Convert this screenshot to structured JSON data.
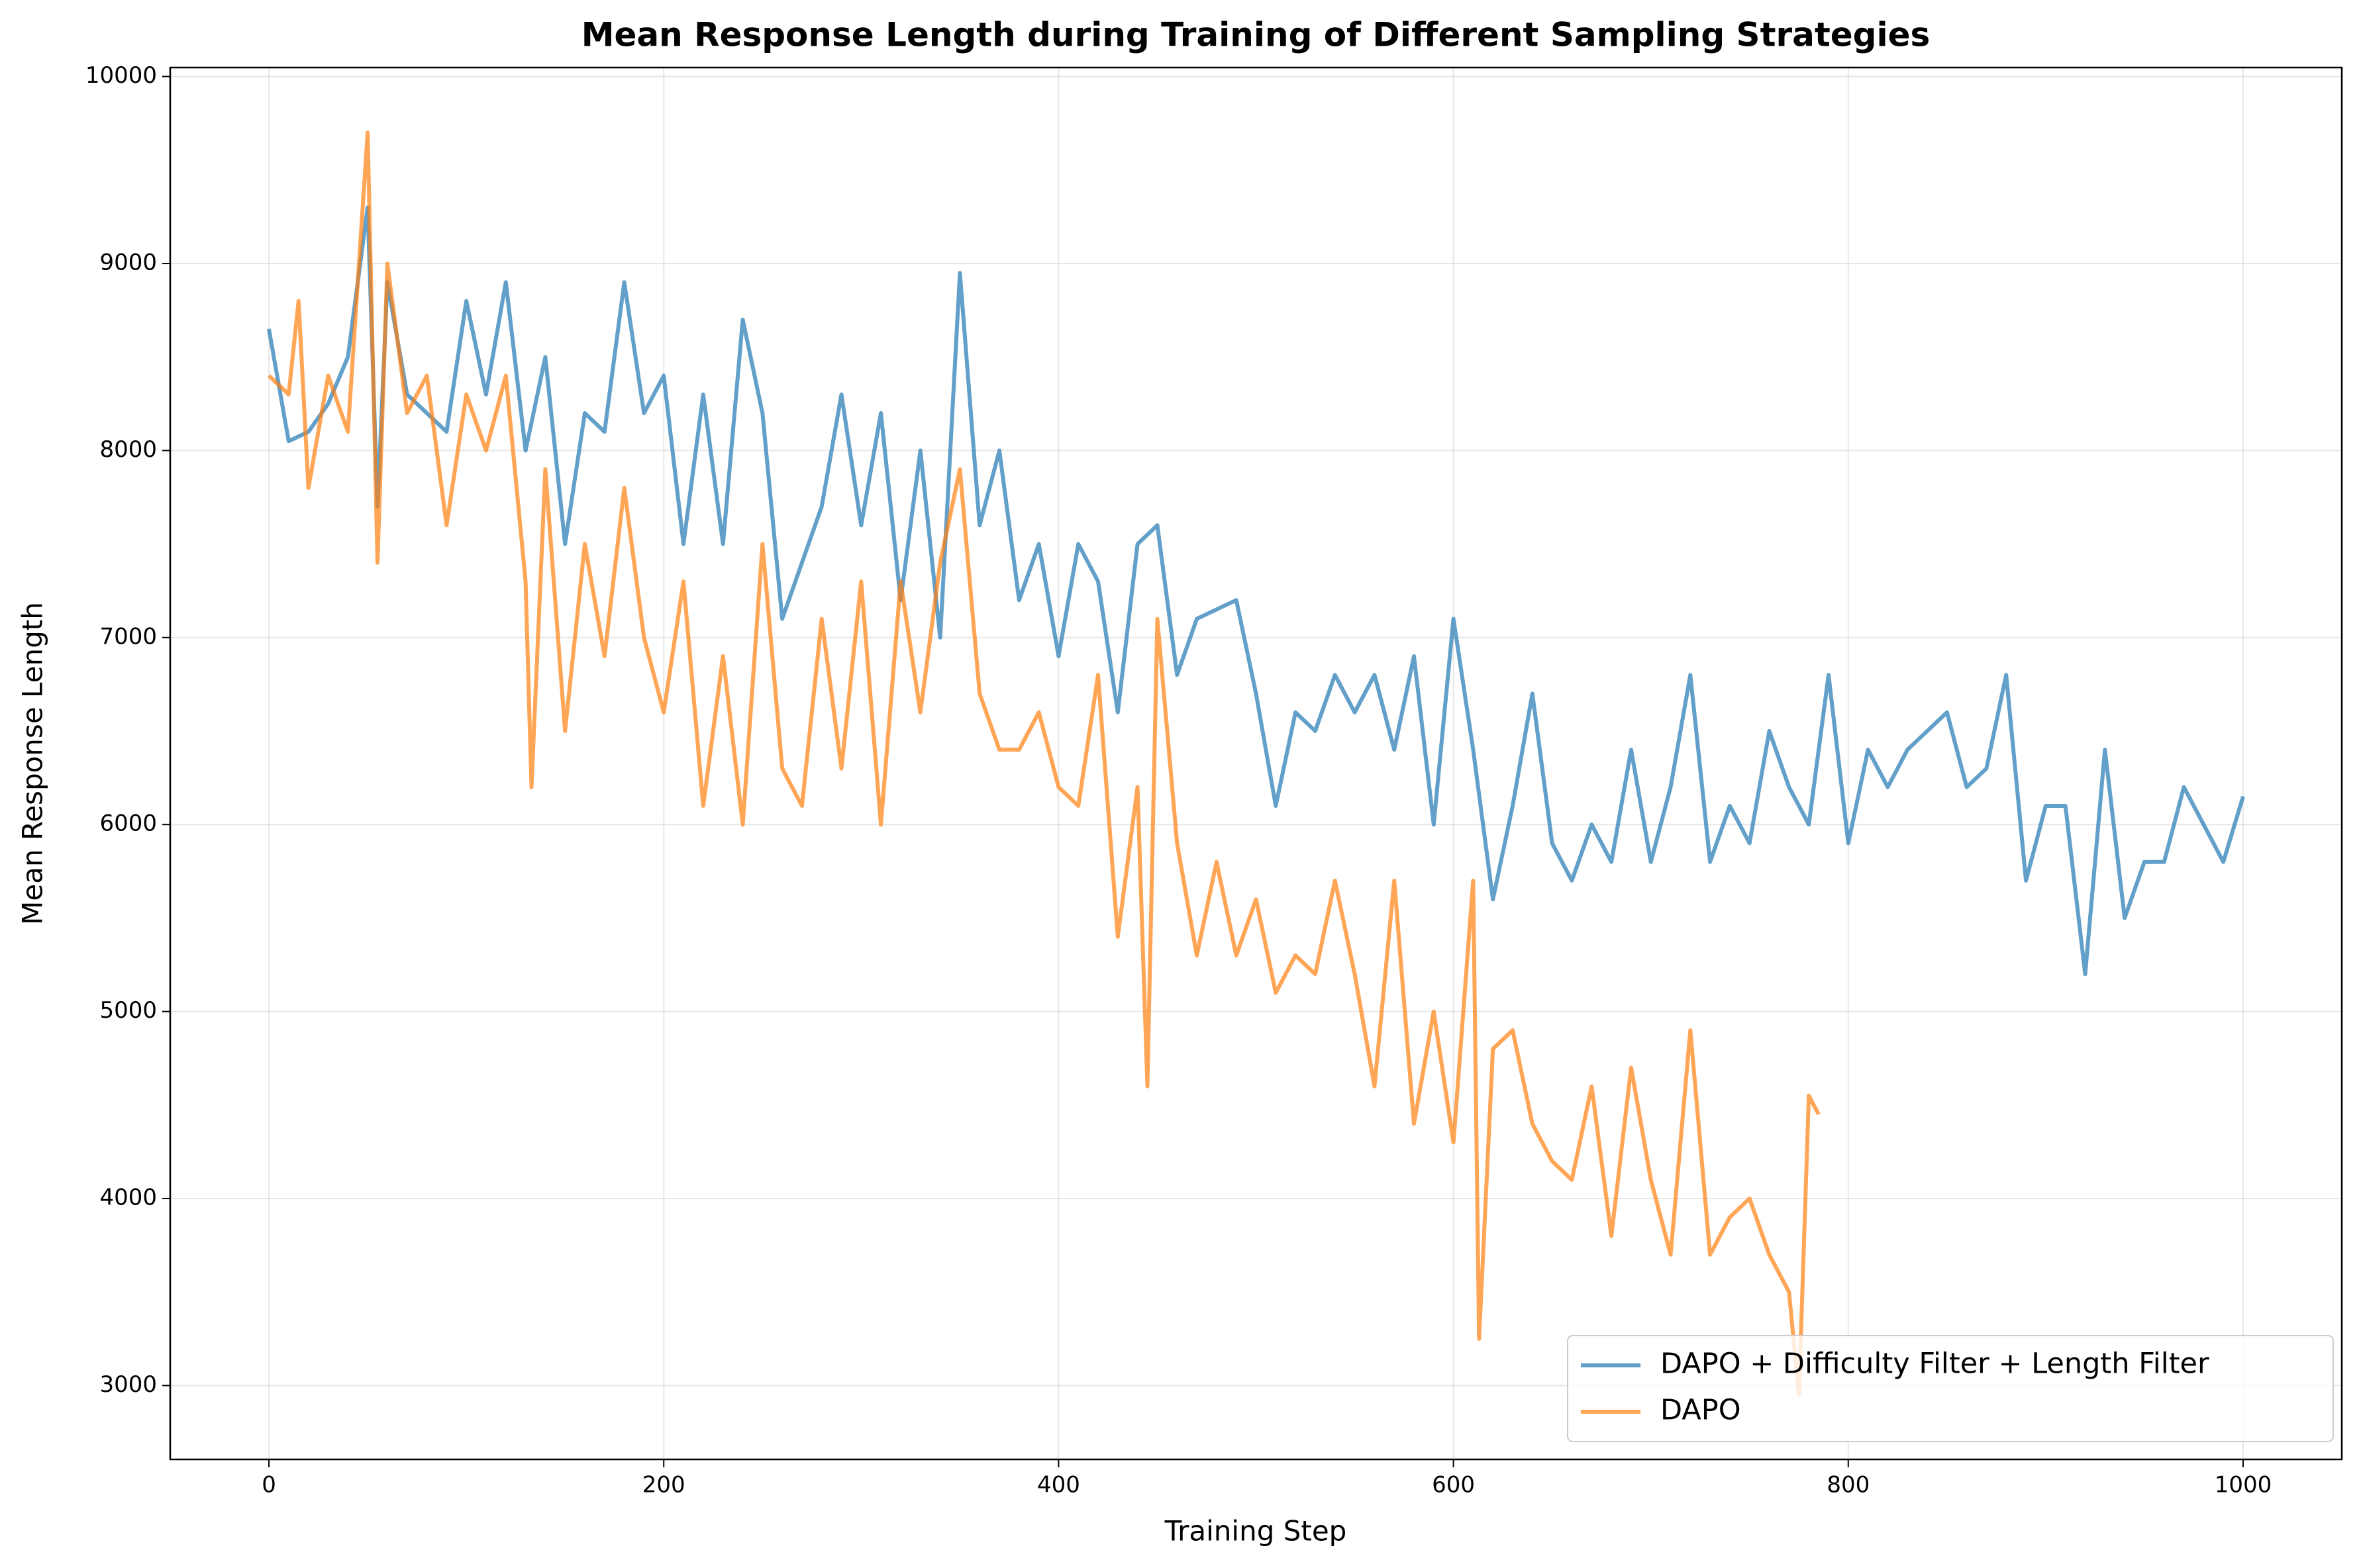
{
  "chart_data": {
    "type": "line",
    "title": "Mean Response Length during Training of Different Sampling Strategies",
    "x_label": "Training Step",
    "y_label": "Mean Response Length",
    "xlim": [
      -50,
      1050
    ],
    "ylim": [
      2605,
      10048
    ],
    "xticks": [
      0,
      200,
      400,
      600,
      800,
      1000
    ],
    "yticks": [
      3000,
      4000,
      5000,
      6000,
      7000,
      8000,
      9000,
      10000
    ],
    "grid": true,
    "legend": "lower right",
    "series": [
      {
        "name": "DAPO + Difficulty Filter + Length Filter",
        "color": "#1f77b4",
        "x": [
          0,
          10,
          20,
          30,
          40,
          50,
          55,
          60,
          70,
          80,
          90,
          100,
          110,
          120,
          130,
          140,
          150,
          160,
          170,
          180,
          190,
          200,
          210,
          220,
          230,
          240,
          250,
          260,
          270,
          280,
          290,
          300,
          310,
          320,
          330,
          340,
          350,
          360,
          370,
          380,
          390,
          400,
          410,
          420,
          430,
          440,
          450,
          460,
          470,
          480,
          490,
          500,
          510,
          520,
          530,
          540,
          550,
          560,
          570,
          580,
          590,
          600,
          610,
          620,
          630,
          640,
          650,
          660,
          670,
          680,
          690,
          700,
          710,
          720,
          730,
          740,
          750,
          760,
          770,
          780,
          790,
          800,
          810,
          820,
          830,
          840,
          850,
          860,
          870,
          880,
          890,
          900,
          910,
          920,
          930,
          940,
          950,
          960,
          970,
          980,
          990,
          1000
        ],
        "values": [
          8650,
          8050,
          8100,
          8250,
          8500,
          9300,
          7700,
          8900,
          8300,
          8200,
          8100,
          8800,
          8300,
          8900,
          8000,
          8500,
          7500,
          8200,
          8100,
          8900,
          8200,
          8400,
          7500,
          8300,
          7500,
          8700,
          8200,
          7100,
          7400,
          7700,
          8300,
          7600,
          8200,
          7200,
          8000,
          7000,
          8950,
          7600,
          8000,
          7200,
          7500,
          6900,
          7500,
          7300,
          6600,
          7500,
          7600,
          6800,
          7100,
          7150,
          7200,
          6700,
          6100,
          6600,
          6500,
          6800,
          6600,
          6800,
          6400,
          6900,
          6000,
          7100,
          6400,
          5600,
          6100,
          6700,
          5900,
          5700,
          6000,
          5800,
          6400,
          5800,
          6200,
          6800,
          5800,
          6100,
          5900,
          6500,
          6200,
          6000,
          6800,
          5900,
          6400,
          6200,
          6400,
          6500,
          6600,
          6200,
          6300,
          6800,
          5700,
          6100,
          6100,
          5200,
          6400,
          5500,
          5800,
          5800,
          6200,
          6000,
          5800,
          6150
        ]
      },
      {
        "name": "DAPO",
        "color": "#ff7f0e",
        "x": [
          0,
          10,
          15,
          20,
          30,
          40,
          50,
          55,
          60,
          70,
          80,
          90,
          100,
          110,
          120,
          130,
          133,
          140,
          150,
          160,
          170,
          180,
          190,
          200,
          210,
          220,
          230,
          240,
          250,
          260,
          270,
          280,
          290,
          300,
          310,
          320,
          330,
          340,
          350,
          360,
          370,
          380,
          390,
          400,
          410,
          420,
          430,
          440,
          445,
          450,
          460,
          470,
          480,
          490,
          500,
          510,
          520,
          530,
          540,
          550,
          560,
          570,
          580,
          590,
          600,
          610,
          613,
          620,
          630,
          640,
          650,
          660,
          670,
          680,
          690,
          700,
          710,
          720,
          730,
          740,
          750,
          760,
          770,
          775,
          780,
          785
        ],
        "values": [
          8400,
          8300,
          8800,
          7800,
          8400,
          8100,
          9700,
          7400,
          9000,
          8200,
          8400,
          7600,
          8300,
          8000,
          8400,
          7300,
          6200,
          7900,
          6500,
          7500,
          6900,
          7800,
          7000,
          6600,
          7300,
          6100,
          6900,
          6000,
          7500,
          6300,
          6100,
          7100,
          6300,
          7300,
          6000,
          7300,
          6600,
          7400,
          7900,
          6700,
          6400,
          6400,
          6600,
          6200,
          6100,
          6800,
          5400,
          6200,
          4600,
          7100,
          5900,
          5300,
          5800,
          5300,
          5600,
          5100,
          5300,
          5200,
          5700,
          5200,
          4600,
          5700,
          4400,
          5000,
          4300,
          5700,
          3250,
          4800,
          4900,
          4400,
          4200,
          4100,
          4600,
          3800,
          4700,
          4100,
          3700,
          4900,
          3700,
          3900,
          4000,
          3700,
          3500,
          2950,
          4550,
          4450
        ]
      }
    ]
  }
}
